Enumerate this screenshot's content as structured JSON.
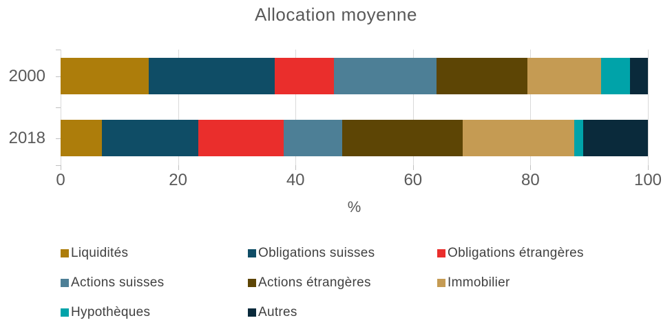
{
  "title": "Allocation moyenne",
  "chart_data": {
    "type": "bar",
    "orientation": "horizontal",
    "stacked": true,
    "title": "Allocation moyenne",
    "categories": [
      "2000",
      "2018"
    ],
    "series": [
      {
        "name": "Liquidités",
        "color": "#AD7D0B",
        "values": [
          15,
          7
        ]
      },
      {
        "name": "Obligations suisses",
        "color": "#0F4D66",
        "values": [
          21.5,
          16.5
        ]
      },
      {
        "name": "Obligations étrangères",
        "color": "#EA2E2C",
        "values": [
          10,
          14.5
        ]
      },
      {
        "name": "Actions suisses",
        "color": "#4D7F96",
        "values": [
          17.5,
          10
        ]
      },
      {
        "name": "Actions étrangères",
        "color": "#5D4505",
        "values": [
          15.5,
          20.5
        ]
      },
      {
        "name": "Immobilier",
        "color": "#C59B53",
        "values": [
          12.5,
          19
        ]
      },
      {
        "name": "Hypothèques",
        "color": "#00A3A9",
        "values": [
          5,
          1.5
        ]
      },
      {
        "name": "Autres",
        "color": "#0A2A3B",
        "values": [
          3,
          11
        ]
      }
    ],
    "xlabel": "%",
    "xlim": [
      0,
      100
    ],
    "xticks": [
      0,
      20,
      40,
      60,
      80,
      100
    ],
    "grid": true,
    "legend_position": "bottom",
    "colors": {
      "title_text": "#595959",
      "axis_text": "#595959",
      "legend_text": "#404040",
      "gridline": "#d9d9d9",
      "tick": "#bfbfbf"
    }
  }
}
